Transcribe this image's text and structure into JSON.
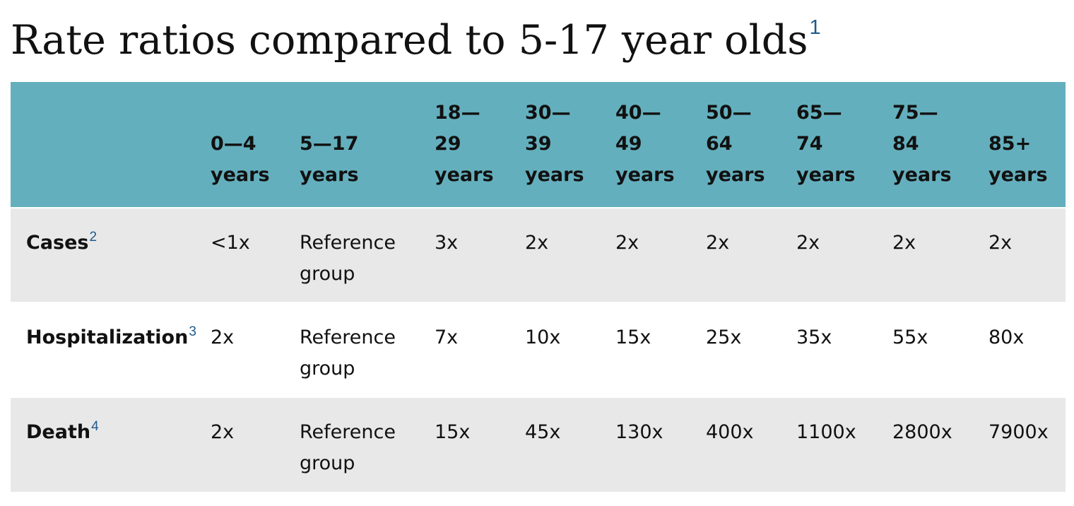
{
  "title": {
    "text": "Rate ratios compared to 5-17 year olds",
    "footnote": "1"
  },
  "table": {
    "columns": [
      "",
      "0—4\nyears",
      "5—17\nyears",
      "18—\n29\nyears",
      "30—\n39\nyears",
      "40—\n49\nyears",
      "50—\n64\nyears",
      "65—\n74\nyears",
      "75—\n84\nyears",
      "85+\nyears"
    ],
    "rows": [
      {
        "label": "Cases",
        "footnote": "2",
        "values": [
          "<1x",
          "Reference\ngroup",
          "3x",
          "2x",
          "2x",
          "2x",
          "2x",
          "2x",
          "2x"
        ]
      },
      {
        "label": "Hospitalization",
        "footnote": "3",
        "values": [
          "2x",
          "Reference\ngroup",
          "7x",
          "10x",
          "15x",
          "25x",
          "35x",
          "55x",
          "80x"
        ]
      },
      {
        "label": "Death",
        "footnote": "4",
        "values": [
          "2x",
          "Reference\ngroup",
          "15x",
          "45x",
          "130x",
          "400x",
          "1100x",
          "2800x",
          "7900x"
        ]
      }
    ]
  },
  "colors": {
    "header_background": "#64afbd",
    "striped_row_background": "#e8e8e8",
    "footnote_link": "#1f5a8c"
  }
}
